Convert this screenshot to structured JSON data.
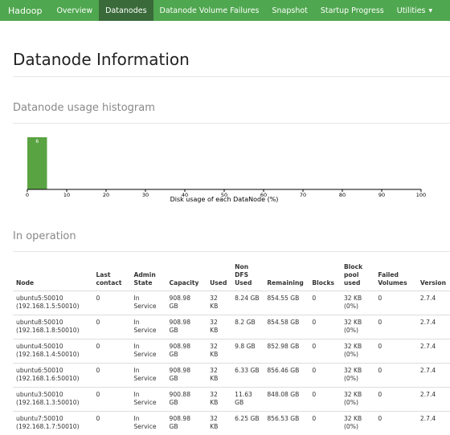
{
  "nav": {
    "brand": "Hadoop",
    "items": [
      "Overview",
      "Datanodes",
      "Datanode Volume Failures",
      "Snapshot",
      "Startup Progress",
      "Utilities"
    ]
  },
  "page_title": "Datanode Information",
  "histogram_title": "Datanode usage histogram",
  "chart_data": {
    "type": "bar",
    "xlabel": "Disk usage of each DataNode (%)",
    "xlim": [
      0,
      100
    ],
    "xticks": [
      0,
      10,
      20,
      30,
      40,
      50,
      60,
      70,
      80,
      90,
      100
    ],
    "bins": [
      {
        "x0": 0,
        "x1": 5,
        "count": 6
      }
    ]
  },
  "in_operation_title": "In operation",
  "table": {
    "headers": [
      [
        "Node"
      ],
      [
        "Last",
        "contact"
      ],
      [
        "Admin",
        "State"
      ],
      [
        "Capacity"
      ],
      [
        "Used"
      ],
      [
        "Non",
        "DFS",
        "Used"
      ],
      [
        "Remaining"
      ],
      [
        "Blocks"
      ],
      [
        "Block",
        "pool",
        "used"
      ],
      [
        "Failed",
        "Volumes"
      ],
      [
        "Version"
      ]
    ],
    "rows": [
      [
        [
          "ubuntu5:50010",
          "(192.168.1.5:50010)"
        ],
        [
          "0"
        ],
        [
          "In",
          "Service"
        ],
        [
          "908.98",
          "GB"
        ],
        [
          "32",
          "KB"
        ],
        [
          "8.24 GB"
        ],
        [
          "854.55 GB"
        ],
        [
          "0"
        ],
        [
          "32 KB",
          "(0%)"
        ],
        [
          "0"
        ],
        [
          "2.7.4"
        ]
      ],
      [
        [
          "ubuntu8:50010",
          "(192.168.1.8:50010)"
        ],
        [
          "0"
        ],
        [
          "In",
          "Service"
        ],
        [
          "908.98",
          "GB"
        ],
        [
          "32",
          "KB"
        ],
        [
          "8.2 GB"
        ],
        [
          "854.58 GB"
        ],
        [
          "0"
        ],
        [
          "32 KB",
          "(0%)"
        ],
        [
          "0"
        ],
        [
          "2.7.4"
        ]
      ],
      [
        [
          "ubuntu4:50010",
          "(192.168.1.4:50010)"
        ],
        [
          "0"
        ],
        [
          "In",
          "Service"
        ],
        [
          "908.98",
          "GB"
        ],
        [
          "32",
          "KB"
        ],
        [
          "9.8 GB"
        ],
        [
          "852.98 GB"
        ],
        [
          "0"
        ],
        [
          "32 KB",
          "(0%)"
        ],
        [
          "0"
        ],
        [
          "2.7.4"
        ]
      ],
      [
        [
          "ubuntu6:50010",
          "(192.168.1.6:50010)"
        ],
        [
          "0"
        ],
        [
          "In",
          "Service"
        ],
        [
          "908.98",
          "GB"
        ],
        [
          "32",
          "KB"
        ],
        [
          "6.33 GB"
        ],
        [
          "856.46 GB"
        ],
        [
          "0"
        ],
        [
          "32 KB",
          "(0%)"
        ],
        [
          "0"
        ],
        [
          "2.7.4"
        ]
      ],
      [
        [
          "ubuntu3:50010",
          "(192.168.1.3:50010)"
        ],
        [
          "0"
        ],
        [
          "In",
          "Service"
        ],
        [
          "900.88",
          "GB"
        ],
        [
          "32",
          "KB"
        ],
        [
          "11.63 GB"
        ],
        [
          "848.08 GB"
        ],
        [
          "0"
        ],
        [
          "32 KB",
          "(0%)"
        ],
        [
          "0"
        ],
        [
          "2.7.4"
        ]
      ],
      [
        [
          "ubuntu7:50010",
          "(192.168.1.7:50010)"
        ],
        [
          "0"
        ],
        [
          "In",
          "Service"
        ],
        [
          "908.98",
          "GB"
        ],
        [
          "32",
          "KB"
        ],
        [
          "6.25 GB"
        ],
        [
          "856.53 GB"
        ],
        [
          "0"
        ],
        [
          "32 KB",
          "(0%)"
        ],
        [
          "0"
        ],
        [
          "2.7.4"
        ]
      ]
    ]
  }
}
